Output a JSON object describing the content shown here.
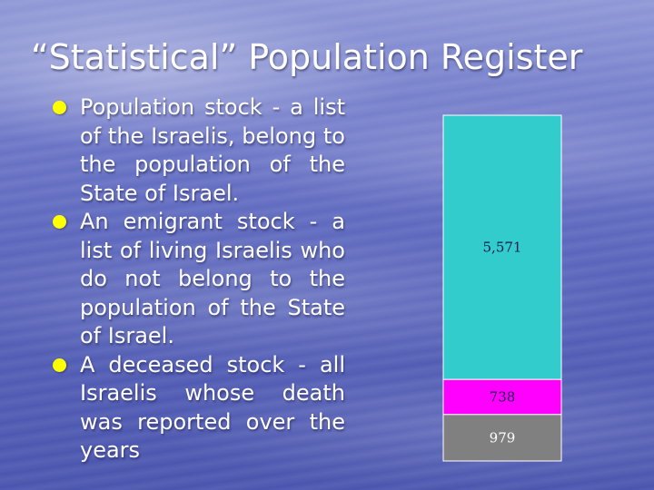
{
  "slide": {
    "title": "“Statistical” Population Register",
    "bullets": [
      "Population stock - a list of the Israelis, belong to the population of the State of Israel.",
      "An emigrant stock - a list of living Israelis who do not belong to the population of the State of Israel.",
      "A deceased stock - all Israelis whose death was reported over the years"
    ],
    "bullet_color": "#ffff00",
    "text_color": "#ffffff"
  },
  "chart_data": {
    "type": "bar",
    "stacked": true,
    "orientation": "vertical",
    "series": [
      {
        "label": "5,571",
        "value": 5571,
        "color": "#33cccc"
      },
      {
        "label": "738",
        "value": 738,
        "color": "#ff00ff"
      },
      {
        "label": "979",
        "value": 979,
        "color": "#808080"
      }
    ],
    "grid": false,
    "legend": "none"
  }
}
